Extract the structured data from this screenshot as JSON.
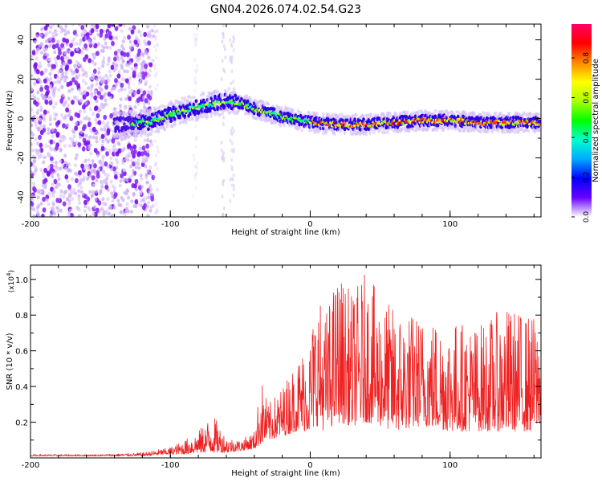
{
  "title": "GN04.2026.074.02.54.G23",
  "chart_data": [
    {
      "type": "heatmap",
      "title": "GN04.2026.074.02.54.G23",
      "xlabel": "Height of straight line (km)",
      "ylabel": "Frequency (Hz)",
      "xlim": [
        -200,
        165
      ],
      "ylim": [
        -50,
        48
      ],
      "xticks": [
        "-200",
        "-100",
        "0",
        "100"
      ],
      "yticks": [
        "40",
        "20",
        "0",
        "-20",
        "-40"
      ],
      "colorbar": {
        "label": "Normalized spectral amplitude",
        "range": [
          0,
          0.97
        ],
        "ticks": [
          "0.0",
          "0.2",
          "0.4",
          "0.6",
          "0.8"
        ],
        "colors": [
          "#ffffff",
          "#6a00ff",
          "#0000ff",
          "#00aaff",
          "#00ffcc",
          "#00ff00",
          "#aaff00",
          "#ffff00",
          "#ff8800",
          "#ff0000",
          "#ff0066"
        ]
      },
      "ridge": {
        "heights_km": [
          -135,
          -115,
          -100,
          -80,
          -60,
          -50,
          -40,
          -20,
          0,
          20,
          40,
          60,
          80,
          100,
          120,
          140,
          165
        ],
        "frequency_hz": [
          -3,
          -2,
          2,
          6,
          9,
          8,
          5,
          1,
          -2,
          -3,
          -3,
          -2,
          -1,
          -1,
          -2,
          -2,
          -2
        ]
      }
    },
    {
      "type": "line",
      "xlabel": "Height of straight line (km)",
      "ylabel": "SNR (10 * v/v)",
      "yscale_label": "(x10",
      "yscale_exp": "4",
      "scale_suffix": ")",
      "xlim": [
        -200,
        165
      ],
      "ylim": [
        0,
        1.08
      ],
      "xticks": [
        "-200",
        "-100",
        "0",
        "100"
      ],
      "yticks": [
        "1.0",
        "0.8",
        "0.6",
        "0.4",
        "0.2"
      ],
      "series": [
        {
          "name": "SNR",
          "color": "#ee2222",
          "envelope_x": [
            -200,
            -150,
            -120,
            -100,
            -90,
            -80,
            -70,
            -60,
            -50,
            -40,
            -35,
            -30,
            -20,
            -10,
            0,
            5,
            10,
            20,
            30,
            40,
            50,
            60,
            80,
            100,
            120,
            140,
            160,
            165
          ],
          "envelope_max": [
            0.02,
            0.02,
            0.03,
            0.06,
            0.1,
            0.15,
            0.25,
            0.12,
            0.1,
            0.15,
            0.45,
            0.3,
            0.4,
            0.55,
            0.7,
            0.95,
            0.8,
            1.05,
            0.92,
            1.05,
            0.9,
            0.85,
            0.8,
            0.78,
            0.75,
            0.85,
            0.8,
            0.75
          ],
          "envelope_min": [
            0.01,
            0.01,
            0.01,
            0.02,
            0.02,
            0.03,
            0.03,
            0.03,
            0.04,
            0.05,
            0.08,
            0.1,
            0.12,
            0.15,
            0.15,
            0.18,
            0.15,
            0.2,
            0.18,
            0.2,
            0.18,
            0.15,
            0.18,
            0.15,
            0.15,
            0.15,
            0.15,
            0.2
          ]
        }
      ]
    }
  ]
}
